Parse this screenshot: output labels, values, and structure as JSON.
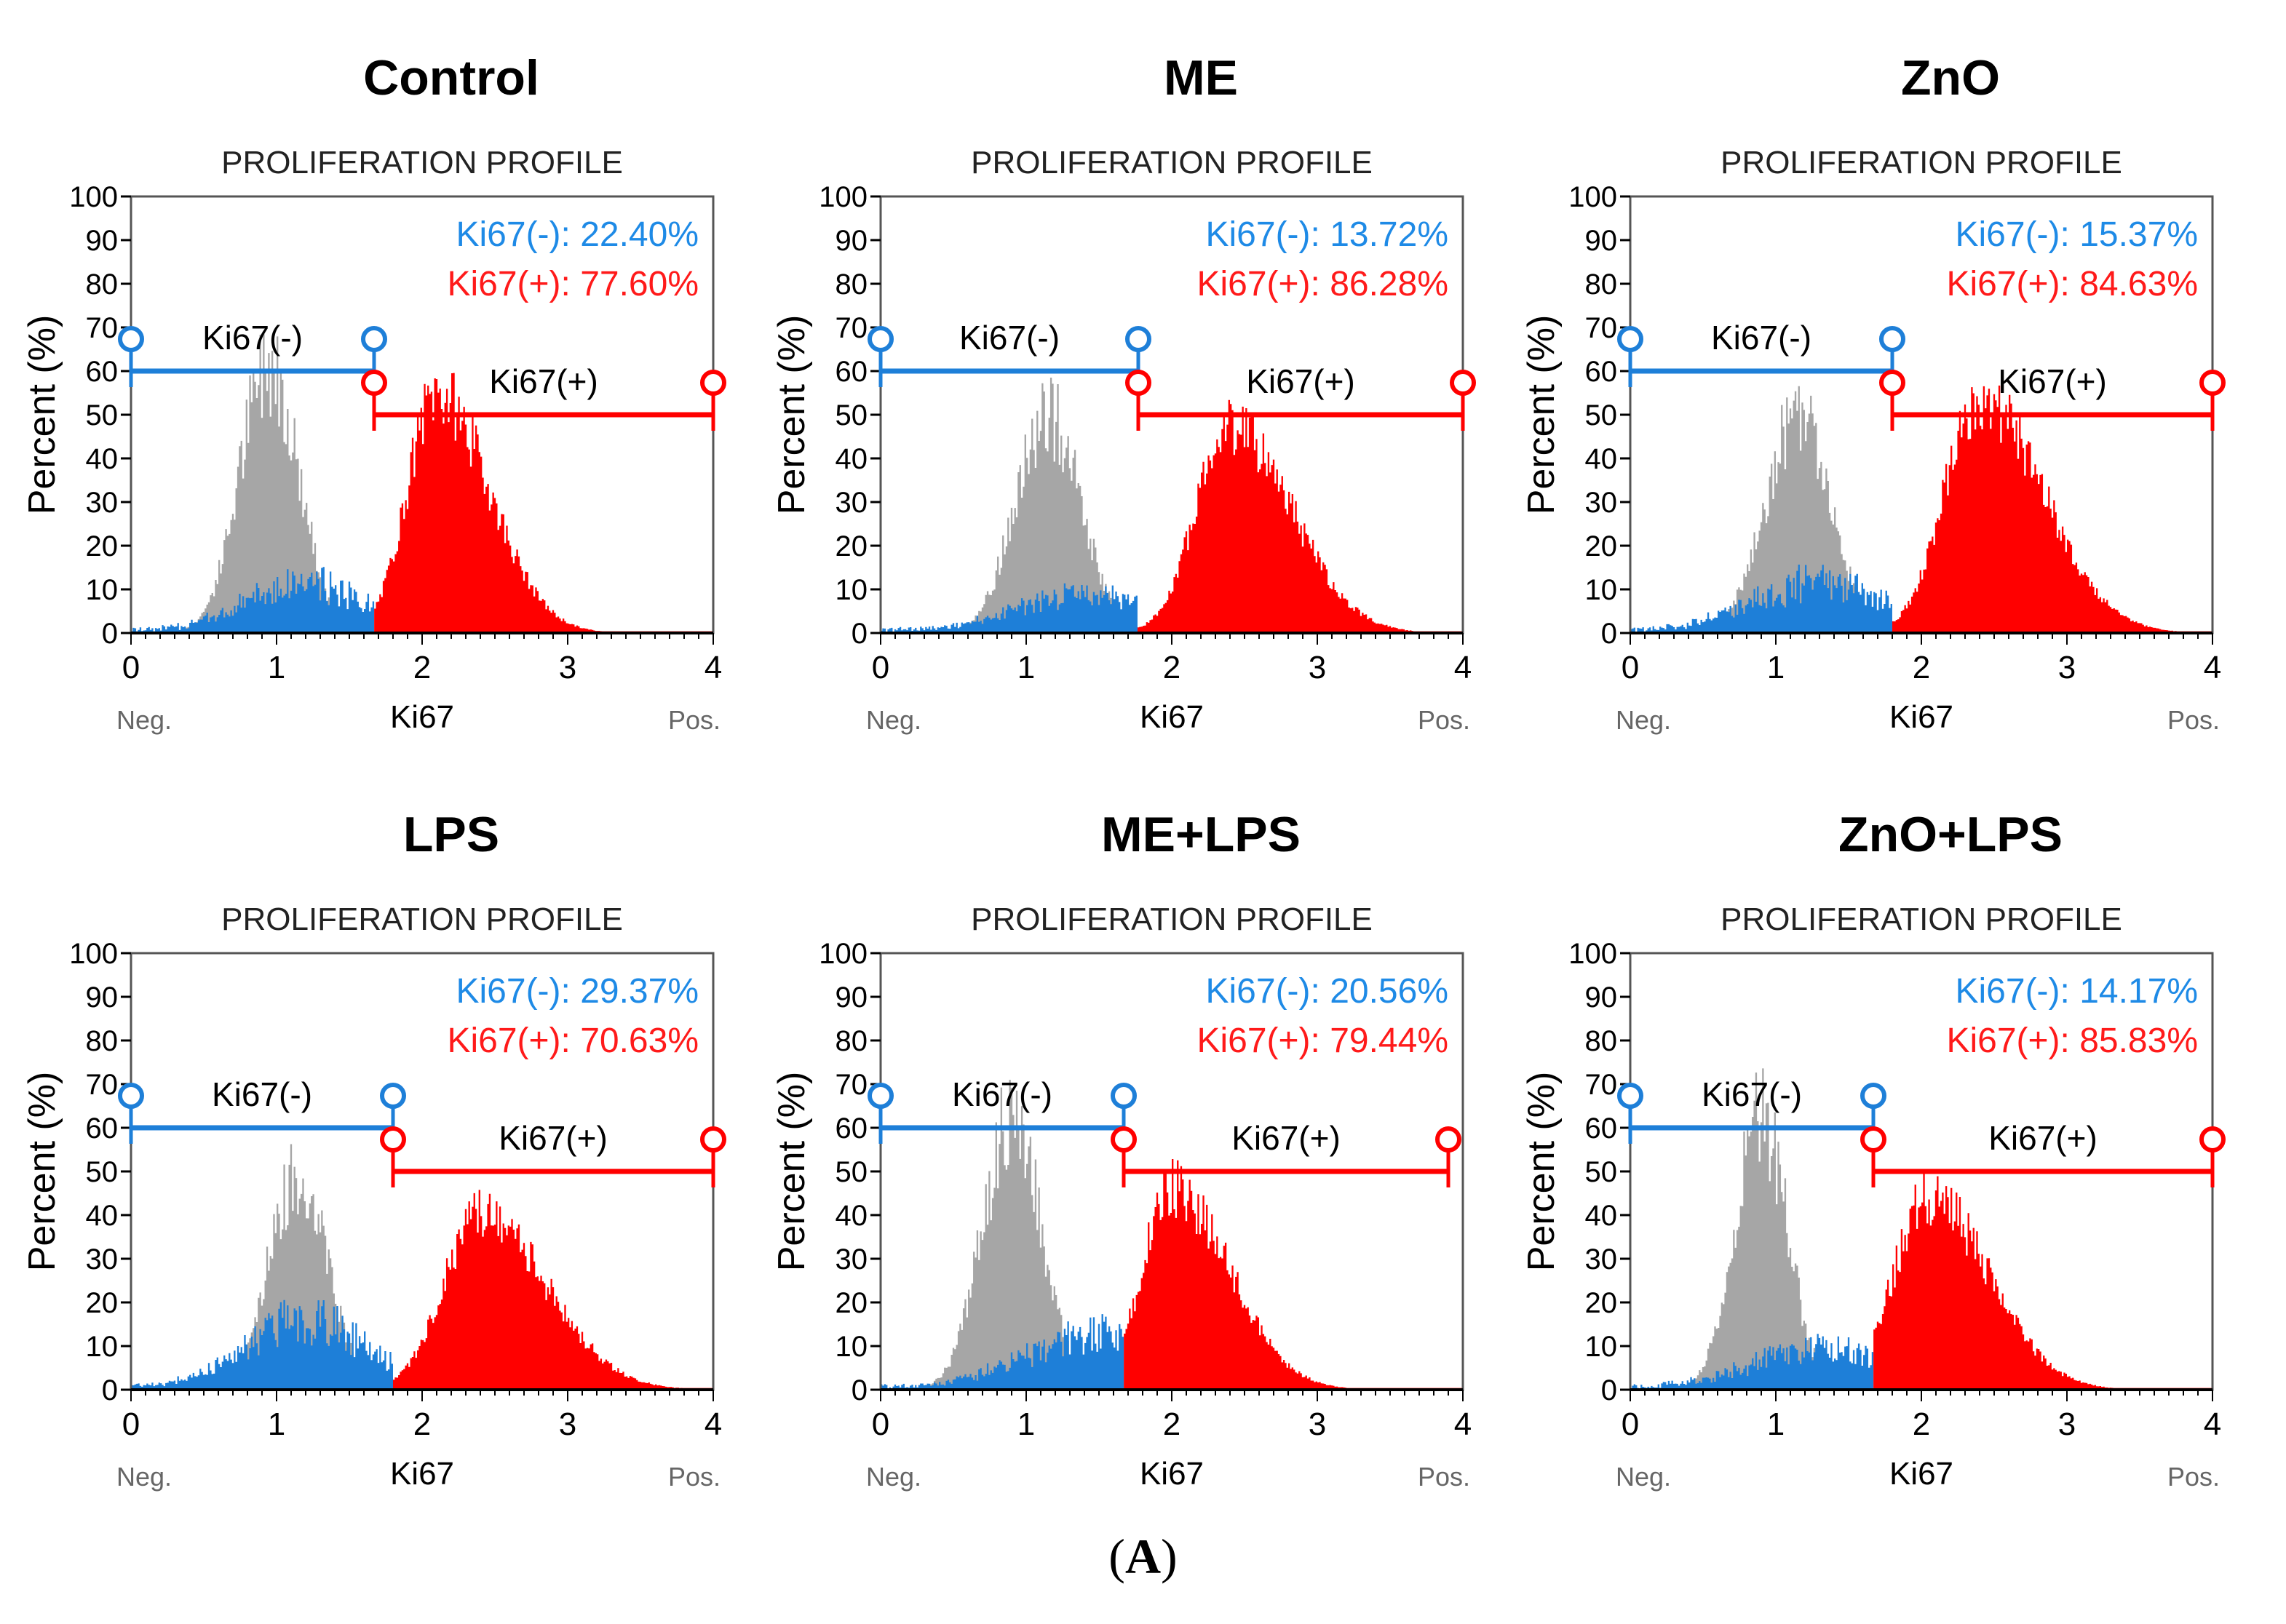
{
  "figure_label": "A",
  "colors": {
    "negative": "#1E7FD8",
    "positive": "#FF0000",
    "total": "#A6A6A6",
    "axis": "#000000",
    "pct_neg_text": "#1E8AE6",
    "pct_pos_text": "#FF1A1A"
  },
  "chart_data": [
    {
      "type": "histogram",
      "panel_title": "Control",
      "title": "PROLIFERATION PROFILE",
      "ylabel": "Percent (%)",
      "xlabel": "Ki67",
      "x_min_label": "Neg.",
      "x_max_label": "Pos.",
      "xlim": [
        0,
        4
      ],
      "ylim": [
        0,
        100
      ],
      "xticks": [
        "0",
        "1",
        "2",
        "3",
        "4"
      ],
      "yticks": [
        "0",
        "10",
        "20",
        "30",
        "40",
        "50",
        "60",
        "70",
        "80",
        "90",
        "100"
      ],
      "neg_pct_text": "Ki67(-): 22.40%",
      "pos_pct_text": "Ki67(+): 77.60%",
      "neg_label": "Ki67(-)",
      "pos_label": "Ki67(+)",
      "neg_gate": {
        "x1": 0,
        "x2": 1.67,
        "y": 60
      },
      "pos_gate": {
        "x1": 1.67,
        "x2": 4.0,
        "y": 50
      },
      "total_peak": {
        "center": 0.95,
        "sigma": 0.2,
        "height": 62
      },
      "neg_peak": {
        "center": 1.2,
        "sigma": 0.4,
        "height": 11
      },
      "pos_peak": {
        "center": 2.1,
        "sigma": 0.2,
        "height": 55,
        "tail": 0.5
      }
    },
    {
      "type": "histogram",
      "panel_title": "ME",
      "title": "PROLIFERATION PROFILE",
      "ylabel": "Percent (%)",
      "xlabel": "Ki67",
      "x_min_label": "Neg.",
      "x_max_label": "Pos.",
      "xlim": [
        0,
        4
      ],
      "ylim": [
        0,
        100
      ],
      "xticks": [
        "0",
        "1",
        "2",
        "3",
        "4"
      ],
      "yticks": [
        "0",
        "10",
        "20",
        "30",
        "40",
        "50",
        "60",
        "70",
        "80",
        "90",
        "100"
      ],
      "neg_pct_text": "Ki67(-): 13.72%",
      "pos_pct_text": "Ki67(+): 86.28%",
      "neg_label": "Ki67(-)",
      "pos_label": "Ki67(+)",
      "neg_gate": {
        "x1": 0,
        "x2": 1.77,
        "y": 60
      },
      "pos_gate": {
        "x1": 1.77,
        "x2": 4.0,
        "y": 50
      },
      "total_peak": {
        "center": 1.15,
        "sigma": 0.22,
        "height": 50
      },
      "neg_peak": {
        "center": 1.4,
        "sigma": 0.45,
        "height": 8
      },
      "pos_peak": {
        "center": 2.4,
        "sigma": 0.23,
        "height": 48,
        "tail": 0.5
      }
    },
    {
      "type": "histogram",
      "panel_title": "ZnO",
      "title": "PROLIFERATION PROFILE",
      "ylabel": "Percent (%)",
      "xlabel": "Ki67",
      "x_min_label": "Neg.",
      "x_max_label": "Pos.",
      "xlim": [
        0,
        4
      ],
      "ylim": [
        0,
        100
      ],
      "xticks": [
        "0",
        "1",
        "2",
        "3",
        "4"
      ],
      "yticks": [
        "0",
        "10",
        "20",
        "30",
        "40",
        "50",
        "60",
        "70",
        "80",
        "90",
        "100"
      ],
      "neg_pct_text": "Ki67(-): 15.37%",
      "pos_pct_text": "Ki67(+): 84.63%",
      "neg_label": "Ki67(-)",
      "pos_label": "Ki67(+)",
      "neg_gate": {
        "x1": 0,
        "x2": 1.8,
        "y": 60
      },
      "pos_gate": {
        "x1": 1.8,
        "x2": 4.0,
        "y": 50
      },
      "total_peak": {
        "center": 1.15,
        "sigma": 0.22,
        "height": 50
      },
      "neg_peak": {
        "center": 1.3,
        "sigma": 0.45,
        "height": 11
      },
      "pos_peak": {
        "center": 2.4,
        "sigma": 0.24,
        "height": 54,
        "tail": 0.5
      }
    },
    {
      "type": "histogram",
      "panel_title": "LPS",
      "title": "PROLIFERATION PROFILE",
      "ylabel": "Percent (%)",
      "xlabel": "Ki67",
      "x_min_label": "Neg.",
      "x_max_label": "Pos.",
      "xlim": [
        0,
        4
      ],
      "ylim": [
        0,
        100
      ],
      "xticks": [
        "0",
        "1",
        "2",
        "3",
        "4"
      ],
      "yticks": [
        "0",
        "10",
        "20",
        "30",
        "40",
        "50",
        "60",
        "70",
        "80",
        "90",
        "100"
      ],
      "neg_pct_text": "Ki67(-): 29.37%",
      "pos_pct_text": "Ki67(+): 70.63%",
      "neg_label": "Ki67(-)",
      "pos_label": "Ki67(+)",
      "neg_gate": {
        "x1": 0,
        "x2": 1.8,
        "y": 60
      },
      "pos_gate": {
        "x1": 1.8,
        "x2": 4.0,
        "y": 50
      },
      "total_peak": {
        "center": 1.15,
        "sigma": 0.2,
        "height": 50
      },
      "neg_peak": {
        "center": 1.2,
        "sigma": 0.4,
        "height": 16
      },
      "pos_peak": {
        "center": 2.4,
        "sigma": 0.25,
        "height": 40,
        "tail": 0.5
      }
    },
    {
      "type": "histogram",
      "panel_title": "ME+LPS",
      "title": "PROLIFERATION PROFILE",
      "ylabel": "Percent (%)",
      "xlabel": "Ki67",
      "x_min_label": "Neg.",
      "x_max_label": "Pos.",
      "xlim": [
        0,
        4
      ],
      "ylim": [
        0,
        100
      ],
      "xticks": [
        "0",
        "1",
        "2",
        "3",
        "4"
      ],
      "yticks": [
        "0",
        "10",
        "20",
        "30",
        "40",
        "50",
        "60",
        "70",
        "80",
        "90",
        "100"
      ],
      "neg_pct_text": "Ki67(-): 20.56%",
      "pos_pct_text": "Ki67(+): 79.44%",
      "neg_label": "Ki67(-)",
      "pos_label": "Ki67(+)",
      "neg_gate": {
        "x1": 0,
        "x2": 1.67,
        "y": 60
      },
      "pos_gate": {
        "x1": 1.67,
        "x2": 3.9,
        "y": 50
      },
      "total_peak": {
        "center": 0.9,
        "sigma": 0.2,
        "height": 62
      },
      "neg_peak": {
        "center": 1.5,
        "sigma": 0.5,
        "height": 12
      },
      "pos_peak": {
        "center": 2.0,
        "sigma": 0.2,
        "height": 46,
        "tail": 0.6
      }
    },
    {
      "type": "histogram",
      "panel_title": "ZnO+LPS",
      "title": "PROLIFERATION PROFILE",
      "ylabel": "Percent (%)",
      "xlabel": "Ki67",
      "x_min_label": "Neg.",
      "x_max_label": "Pos.",
      "xlim": [
        0,
        4
      ],
      "ylim": [
        0,
        100
      ],
      "xticks": [
        "0",
        "1",
        "2",
        "3",
        "4"
      ],
      "yticks": [
        "0",
        "10",
        "20",
        "30",
        "40",
        "50",
        "60",
        "70",
        "80",
        "90",
        "100"
      ],
      "neg_pct_text": "Ki67(-): 14.17%",
      "pos_pct_text": "Ki67(+): 85.83%",
      "neg_label": "Ki67(-)",
      "pos_label": "Ki67(+)",
      "neg_gate": {
        "x1": 0,
        "x2": 1.67,
        "y": 60
      },
      "pos_gate": {
        "x1": 1.67,
        "x2": 4.0,
        "y": 50
      },
      "total_peak": {
        "center": 0.9,
        "sigma": 0.18,
        "height": 62
      },
      "neg_peak": {
        "center": 1.3,
        "sigma": 0.45,
        "height": 9
      },
      "pos_peak": {
        "center": 2.05,
        "sigma": 0.24,
        "height": 44,
        "tail": 0.45
      }
    }
  ]
}
